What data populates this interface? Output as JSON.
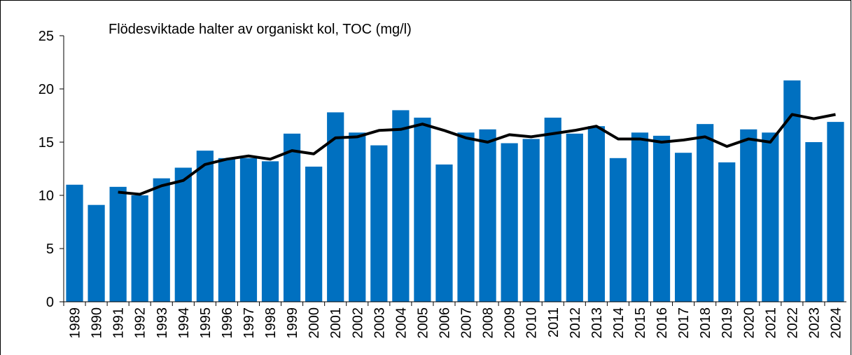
{
  "chart_data": {
    "type": "bar",
    "title": "Flödesviktade halter av organiskt kol, TOC (mg/l)",
    "categories": [
      "1989",
      "1990",
      "1991",
      "1992",
      "1993",
      "1994",
      "1995",
      "1996",
      "1997",
      "1998",
      "1999",
      "2000",
      "2001",
      "2002",
      "2003",
      "2004",
      "2005",
      "2006",
      "2007",
      "2008",
      "2009",
      "2010",
      "2011",
      "2012",
      "2013",
      "2014",
      "2015",
      "2016",
      "2017",
      "2018",
      "2019",
      "2020",
      "2021",
      "2022",
      "2023",
      "2024"
    ],
    "series": [
      {
        "type": "bar",
        "color": "#0070c0",
        "values": [
          11.0,
          9.1,
          10.8,
          10.0,
          11.6,
          12.6,
          14.2,
          13.5,
          13.5,
          13.2,
          15.8,
          12.7,
          17.8,
          15.9,
          14.7,
          18.0,
          17.3,
          12.9,
          15.9,
          16.2,
          14.9,
          15.3,
          17.3,
          15.8,
          16.5,
          13.5,
          15.9,
          15.6,
          14.0,
          16.7,
          13.1,
          16.2,
          15.9,
          20.8,
          15.0,
          16.9
        ]
      },
      {
        "type": "line",
        "color": "#000000",
        "values": [
          null,
          null,
          10.3,
          10.1,
          10.9,
          11.4,
          12.9,
          13.4,
          13.7,
          13.4,
          14.2,
          13.9,
          15.4,
          15.5,
          16.1,
          16.2,
          16.7,
          16.1,
          15.4,
          15.0,
          15.7,
          15.5,
          15.8,
          16.1,
          16.5,
          15.3,
          15.3,
          15.0,
          15.2,
          15.5,
          14.6,
          15.3,
          15.0,
          17.6,
          17.2,
          17.6
        ]
      }
    ],
    "ylim": [
      0,
      25
    ],
    "yticks": [
      0,
      5,
      10,
      15,
      20,
      25
    ],
    "grid": false
  }
}
